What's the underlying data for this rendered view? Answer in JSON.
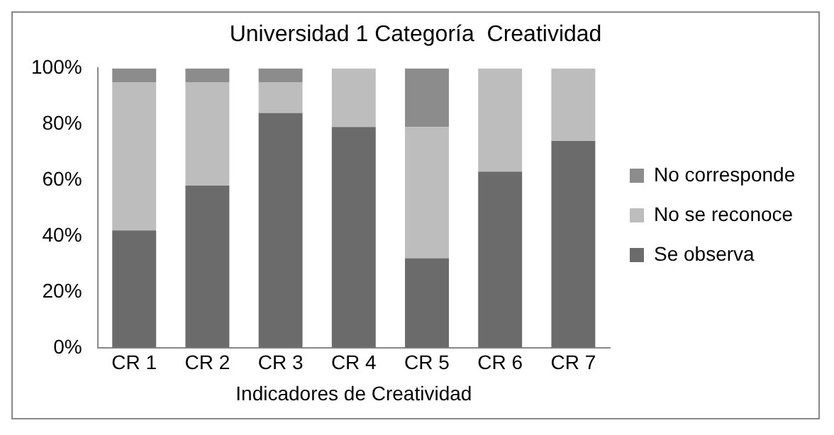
{
  "chart_data": {
    "type": "bar",
    "stacked": true,
    "title": "Universidad 1 Categoría  Creatividad",
    "xlabel": "Indicadores de Creatividad",
    "categories": [
      "CR 1",
      "CR 2",
      "CR 3",
      "CR 4",
      "CR 5",
      "CR 6",
      "CR 7"
    ],
    "series": [
      {
        "name": "Se observa",
        "color": "#6b6b6b",
        "values": [
          42,
          58,
          84,
          79,
          32,
          63,
          74
        ]
      },
      {
        "name": "No se reconoce",
        "color": "#bdbdbd",
        "values": [
          53,
          37,
          11,
          21,
          47,
          37,
          26
        ]
      },
      {
        "name": "No corresponde",
        "color": "#8c8c8c",
        "values": [
          5,
          5,
          5,
          0,
          21,
          0,
          0
        ]
      }
    ],
    "ylim": [
      0,
      100
    ],
    "yticks": [
      {
        "value": 0,
        "label": "0%"
      },
      {
        "value": 20,
        "label": "20%"
      },
      {
        "value": 40,
        "label": "40%"
      },
      {
        "value": 60,
        "label": "60%"
      },
      {
        "value": 80,
        "label": "80%"
      },
      {
        "value": 100,
        "label": "100%"
      }
    ],
    "grid": false,
    "legend": "right"
  }
}
